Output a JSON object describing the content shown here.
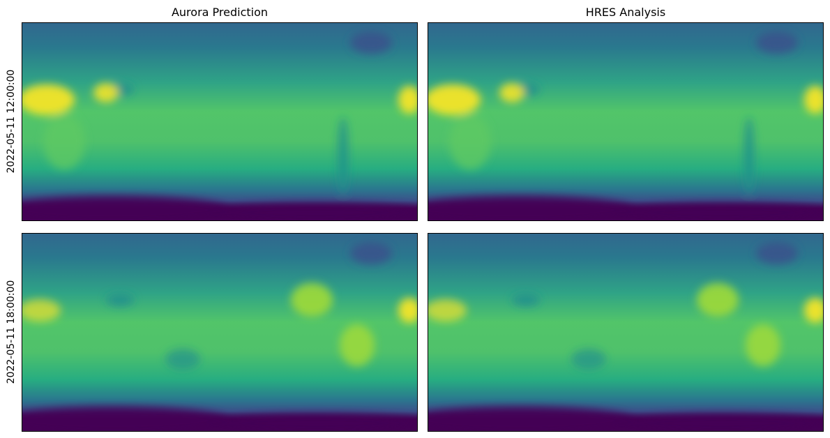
{
  "chart_data": {
    "type": "heatmap",
    "columns": [
      "Aurora Prediction",
      "HRES Analysis"
    ],
    "rows": [
      "2022-05-11 12:00:00",
      "2022-05-11 18:00:00"
    ],
    "colormap": "viridis",
    "axes_ticks": "none",
    "colorbar": false,
    "panels": [
      {
        "row": "2022-05-11 12:00:00",
        "column": "Aurora Prediction",
        "hot_region": "africa-arabia"
      },
      {
        "row": "2022-05-11 12:00:00",
        "column": "HRES Analysis",
        "hot_region": "africa-arabia"
      },
      {
        "row": "2022-05-11 18:00:00",
        "column": "Aurora Prediction",
        "hot_region": "americas"
      },
      {
        "row": "2022-05-11 18:00:00",
        "column": "HRES Analysis",
        "hot_region": "americas"
      }
    ]
  },
  "colors": {
    "cold": "#440154",
    "cool": "#3b528b",
    "mid": "#21918c",
    "warm": "#5ec962",
    "hot": "#fde725"
  }
}
